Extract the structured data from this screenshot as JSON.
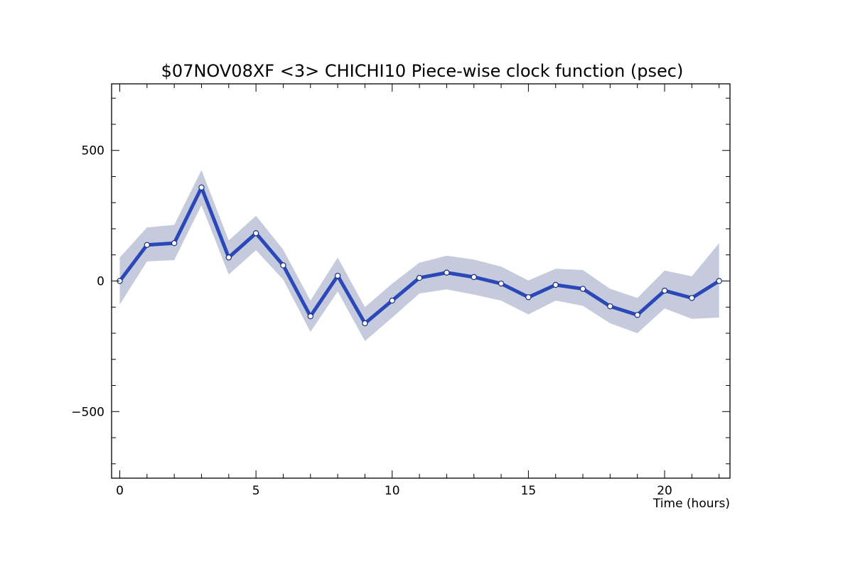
{
  "chart_data": {
    "type": "line",
    "title": "$07NOV08XF <3>  CHICHI10  Piece-wise clock function (psec)",
    "xlabel": "Time (hours)",
    "ylabel": "",
    "xlim": [
      -0.3,
      22.4
    ],
    "ylim": [
      -755,
      755
    ],
    "x_ticks": [
      0,
      5,
      10,
      15,
      20
    ],
    "x_tick_labels": [
      "0",
      "5",
      "10",
      "15",
      "20"
    ],
    "y_ticks": [
      -500,
      0,
      500
    ],
    "y_tick_labels": [
      "−500",
      "0",
      "500"
    ],
    "grid": false,
    "legend": "none",
    "colors": {
      "line": "#2a48b8",
      "band": "#c5cadd",
      "marker_fill": "#ffffff",
      "marker_edge": "#1a2f80",
      "axes": "#000000"
    },
    "series": [
      {
        "x": [
          0,
          1,
          2,
          3,
          4,
          5,
          6,
          7,
          8,
          9,
          10,
          11,
          12,
          13,
          14,
          15,
          16,
          17,
          18,
          19,
          20,
          21,
          22
        ],
        "y": [
          0,
          138,
          145,
          358,
          90,
          183,
          60,
          -135,
          20,
          -162,
          -75,
          12,
          32,
          15,
          -10,
          -62,
          -15,
          -30,
          -97,
          -130,
          -37,
          -65,
          0
        ],
        "upper": [
          90,
          205,
          215,
          425,
          155,
          250,
          120,
          -75,
          90,
          -100,
          -10,
          70,
          97,
          82,
          55,
          2,
          47,
          42,
          -30,
          -65,
          40,
          18,
          145
        ],
        "lower": [
          -90,
          75,
          80,
          290,
          25,
          118,
          5,
          -195,
          -40,
          -230,
          -140,
          -48,
          -32,
          -52,
          -75,
          -128,
          -75,
          -95,
          -162,
          -200,
          -105,
          -145,
          -140
        ]
      }
    ]
  }
}
